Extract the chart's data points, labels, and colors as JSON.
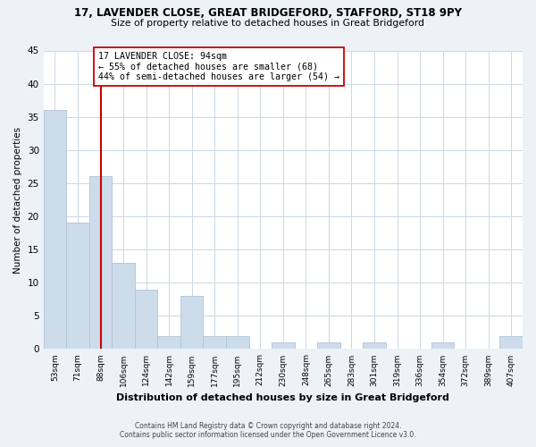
{
  "title_line1": "17, LAVENDER CLOSE, GREAT BRIDGEFORD, STAFFORD, ST18 9PY",
  "title_line2": "Size of property relative to detached houses in Great Bridgeford",
  "bar_labels": [
    "53sqm",
    "71sqm",
    "88sqm",
    "106sqm",
    "124sqm",
    "142sqm",
    "159sqm",
    "177sqm",
    "195sqm",
    "212sqm",
    "230sqm",
    "248sqm",
    "265sqm",
    "283sqm",
    "301sqm",
    "319sqm",
    "336sqm",
    "354sqm",
    "372sqm",
    "389sqm",
    "407sqm"
  ],
  "bar_values": [
    36,
    19,
    26,
    13,
    9,
    2,
    8,
    2,
    2,
    0,
    1,
    0,
    1,
    0,
    1,
    0,
    0,
    1,
    0,
    0,
    2
  ],
  "bar_color": "#cddceb",
  "bar_edge_color": "#afc4d8",
  "vline_x": 2,
  "vline_color": "#cc0000",
  "annotation_text_line1": "17 LAVENDER CLOSE: 94sqm",
  "annotation_text_line2": "← 55% of detached houses are smaller (68)",
  "annotation_text_line3": "44% of semi-detached houses are larger (54) →",
  "annotation_box_color": "white",
  "annotation_box_edge_color": "#cc0000",
  "ylabel": "Number of detached properties",
  "xlabel": "Distribution of detached houses by size in Great Bridgeford",
  "ylim": [
    0,
    45
  ],
  "yticks": [
    0,
    5,
    10,
    15,
    20,
    25,
    30,
    35,
    40,
    45
  ],
  "footer_line1": "Contains HM Land Registry data © Crown copyright and database right 2024.",
  "footer_line2": "Contains public sector information licensed under the Open Government Licence v3.0.",
  "bg_color": "#edf2f7",
  "plot_bg_color": "#ffffff",
  "grid_color": "#ccd8e4"
}
